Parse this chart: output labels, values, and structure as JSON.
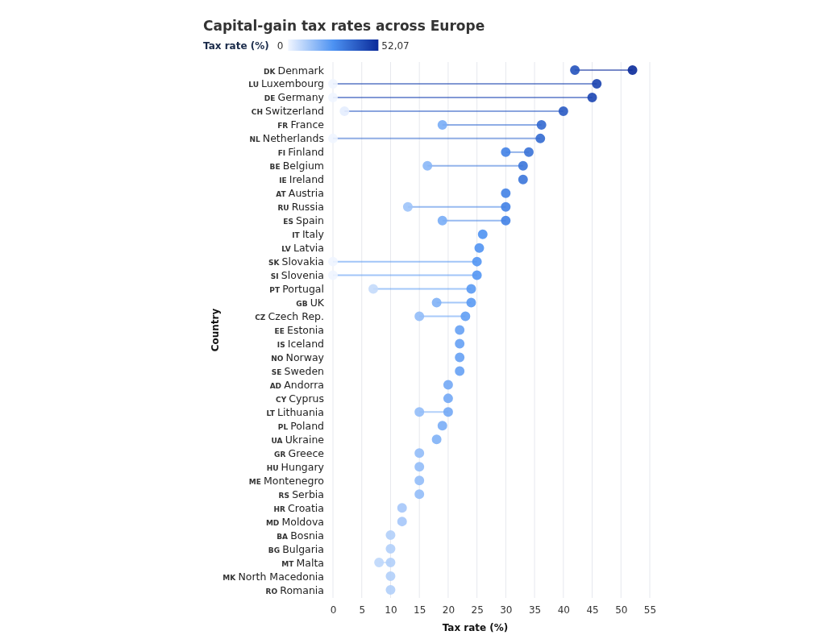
{
  "chart_data": {
    "type": "scatter",
    "orientation": "horizontal",
    "title": "Capital-gain tax rates across Europe",
    "xlabel": "Tax rate (%)",
    "ylabel": "Country",
    "clabel": "Tax rate (%)",
    "annotations": [
      "0",
      "52,07"
    ],
    "categories": [
      "DK Denmark",
      "LU Luxembourg",
      "DE Germany",
      "CH Switzerland",
      "FR France",
      "NL Netherlands",
      "FI Finland",
      "BE Belgium",
      "IE Ireland",
      "AT Austria",
      "RU Russia",
      "ES Spain",
      "IT Italy",
      "LV Latvia",
      "SK Slovakia",
      "SI Slovenia",
      "PT Portugal",
      "GB UK",
      "CZ Czech Rep.",
      "EE Estonia",
      "IS Iceland",
      "NO Norway",
      "SE Sweden",
      "AD Andorra",
      "CY Cyprus",
      "LT Lithuania",
      "PL Poland",
      "UA Ukraine",
      "GR Greece",
      "HU Hungary",
      "ME Montenegro",
      "RS Serbia",
      "HR Croatia",
      "MD Moldova",
      "BA Bosnia",
      "BG Bulgaria",
      "MT Malta",
      "MK North Macedonia",
      "RO Romania"
    ],
    "series": [
      {
        "values": [
          42,
          0,
          0,
          2,
          19,
          0,
          30,
          16.4,
          null,
          null,
          13,
          19,
          null,
          null,
          0,
          0,
          7,
          18,
          15,
          null,
          null,
          null,
          null,
          null,
          null,
          15,
          null,
          null,
          null,
          null,
          null,
          null,
          null,
          null,
          null,
          null,
          8,
          null,
          null
        ],
        "colors": [
          "#2452bc",
          "#f0f5ff",
          "#f0f5ff",
          "#e4edfe",
          "#79adf6",
          "#f0f5ff",
          "#4382e5",
          "#89b7f7",
          null,
          null,
          "#9fc4f9",
          "#79adf6",
          null,
          null,
          "#f0f5ff",
          "#f0f5ff",
          "#c4dafb",
          "#7fb1f6",
          "#92bcf8",
          null,
          null,
          null,
          null,
          null,
          null,
          "#92bcf8",
          null,
          null,
          null,
          null,
          null,
          null,
          null,
          null,
          null,
          null,
          "#bed7fb",
          null,
          null
        ]
      },
      {
        "values": [
          52,
          45.8,
          45,
          40,
          36.2,
          36,
          34,
          33,
          33,
          30,
          30,
          30,
          26,
          25.4,
          25,
          25,
          24,
          24,
          23,
          22,
          22,
          22,
          22,
          20,
          20,
          20,
          19,
          18,
          15,
          15,
          15,
          15,
          12,
          12,
          10,
          10,
          10,
          10,
          10
        ],
        "colors": [
          "#0a2a9a",
          "#1a43af",
          "#1c46b2",
          "#295ac3",
          "#3369d0",
          "#336ad0",
          "#3872d7",
          "#3b76da",
          "#3b76da",
          "#4382e5",
          "#4382e5",
          "#4382e5",
          "#4e92f2",
          "#5194f2",
          "#5396f3",
          "#5396f3",
          "#5a9af3",
          "#5a9af3",
          "#609ef4",
          "#66a1f4",
          "#66a1f4",
          "#66a1f4",
          "#66a1f4",
          "#73a9f5",
          "#73a9f5",
          "#73a9f5",
          "#79adf6",
          "#7fb1f6",
          "#92bcf8",
          "#92bcf8",
          "#92bcf8",
          "#92bcf8",
          "#a5c7f9",
          "#a5c7f9",
          "#b1cffa",
          "#b1cffa",
          "#b1cffa",
          "#b1cffa",
          "#b1cffa"
        ]
      }
    ],
    "xlim": [
      0,
      55
    ],
    "xticks": [
      0,
      5,
      10,
      15,
      20,
      25,
      30,
      35,
      40,
      45,
      50,
      55
    ],
    "grid": "x",
    "marker": "circle"
  }
}
